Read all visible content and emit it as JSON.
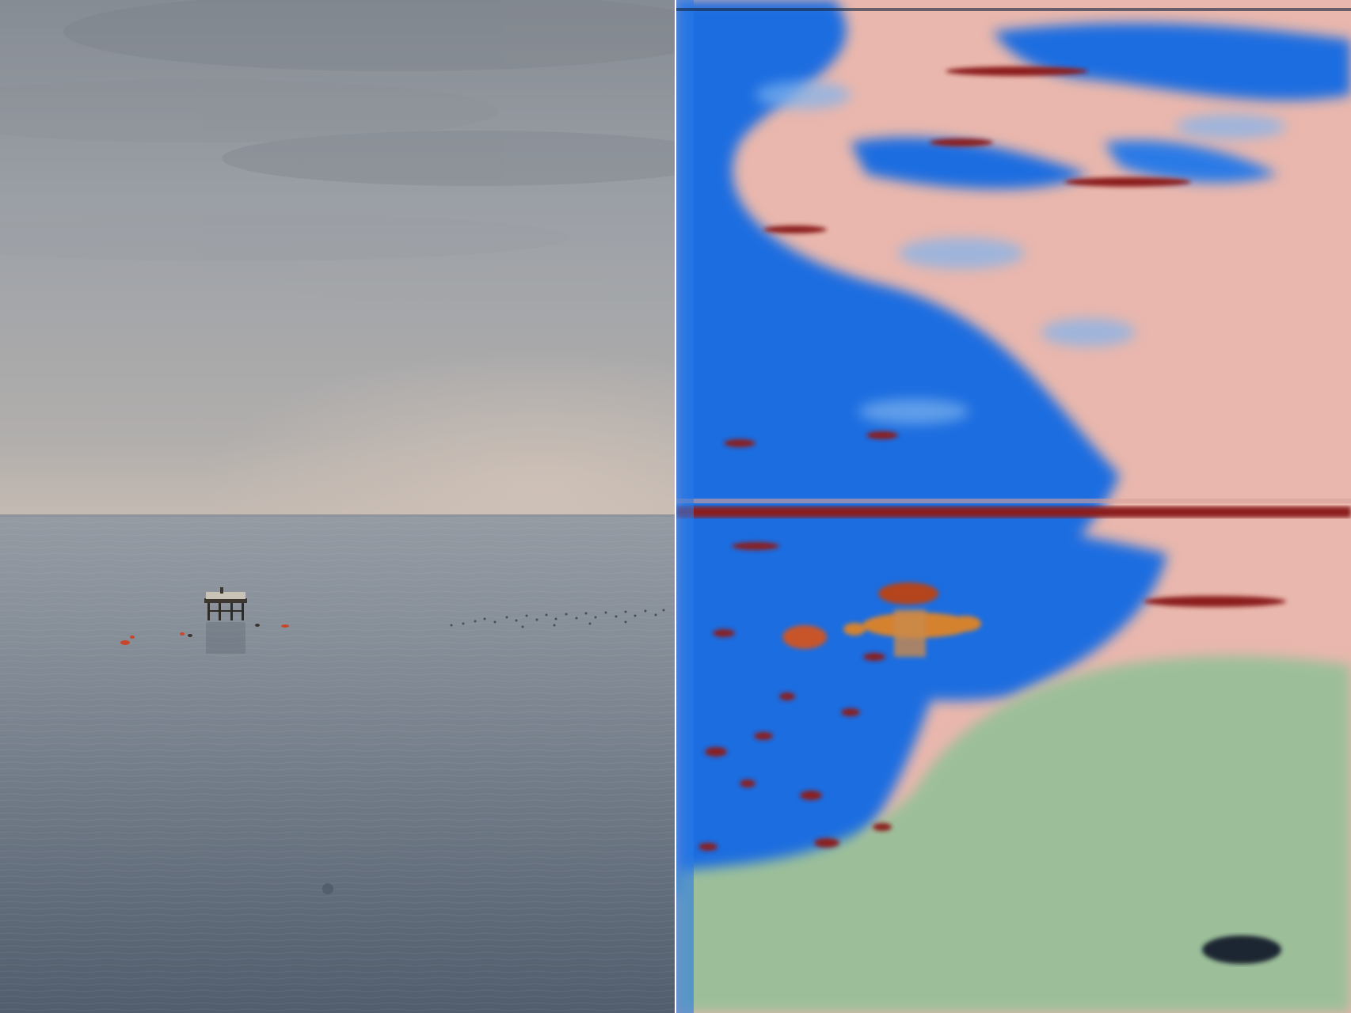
{
  "panels": [
    {
      "name": "left-photo",
      "colors": {
        "sky_top": "#8a9098",
        "sky_mid": "#a5a8ad",
        "horizon_glow": "#c9bfb6",
        "sea_top": "#9097a0",
        "sea_bottom": "#4d5868",
        "platform": "#3b3630",
        "buoy": "#c8472c"
      },
      "icons": [
        "offshore-platform-icon",
        "bird-flock-icon",
        "buoy-icon"
      ]
    },
    {
      "name": "right-colormap",
      "colors": {
        "blue": "#1f6de0",
        "light_blue": "#7fb3ee",
        "pink": "#e9b7ad",
        "dark_red": "#8b1e1a",
        "orange": "#d4822e",
        "green": "#9cbf9a",
        "dark_spot": "#1e2530"
      }
    }
  ]
}
